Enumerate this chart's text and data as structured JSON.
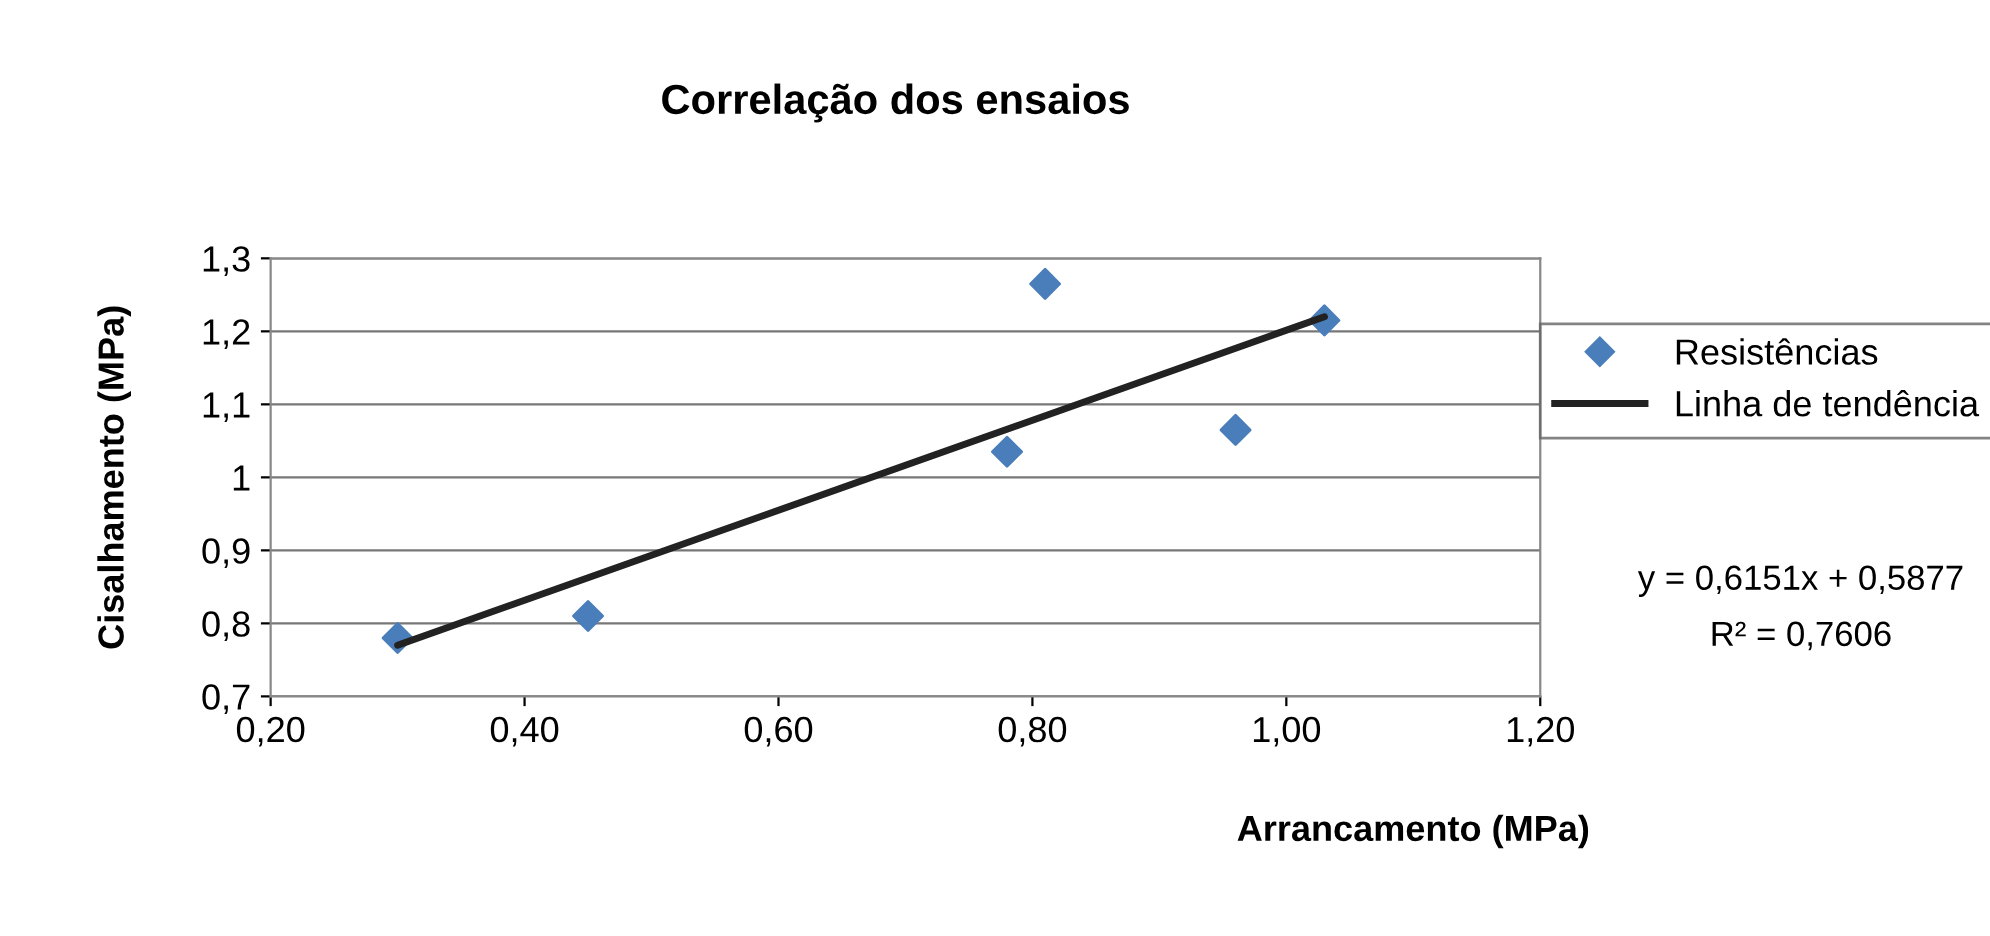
{
  "chart_data": {
    "type": "scatter",
    "title": "Correlação dos ensaios",
    "xlabel": "Arrancamento (MPa)",
    "ylabel": "Cisalhamento (MPa)",
    "series": [
      {
        "name": "Resistências",
        "color": "#4a7ebb",
        "marker": "diamond",
        "x": [
          0.3,
          0.45,
          0.78,
          0.81,
          0.96,
          1.03
        ],
        "values": [
          0.78,
          0.81,
          1.035,
          1.265,
          1.065,
          1.215
        ]
      },
      {
        "name": "Linha de tendência",
        "type": "line",
        "color": "#222222",
        "marker": "none",
        "line_style": "solid",
        "x": [
          0.3,
          1.03
        ],
        "values": [
          0.77,
          1.22
        ]
      }
    ],
    "annotations": [
      "y = 0,6151x + 0,5877",
      "R² = 0,7606"
    ],
    "xlim": [
      0.2,
      1.2
    ],
    "xticks": [
      {
        "value": 0.2,
        "label": "0,20"
      },
      {
        "value": 0.4,
        "label": "0,40"
      },
      {
        "value": 0.6,
        "label": "0,60"
      },
      {
        "value": 0.8,
        "label": "0,80"
      },
      {
        "value": 1.0,
        "label": "1,00"
      },
      {
        "value": 1.2,
        "label": "1,20"
      }
    ],
    "ylim": [
      0.7,
      1.3
    ],
    "yticks": [
      {
        "value": 0.7,
        "label": "0,7"
      },
      {
        "value": 0.8,
        "label": "0,8"
      },
      {
        "value": 0.9,
        "label": "0,9"
      },
      1,
      {
        "value": 1.1,
        "label": "1,1"
      },
      {
        "value": 1.2,
        "label": "1,2"
      },
      {
        "value": 1.3,
        "label": "1,3"
      }
    ],
    "grid": "y",
    "legend": "right"
  }
}
